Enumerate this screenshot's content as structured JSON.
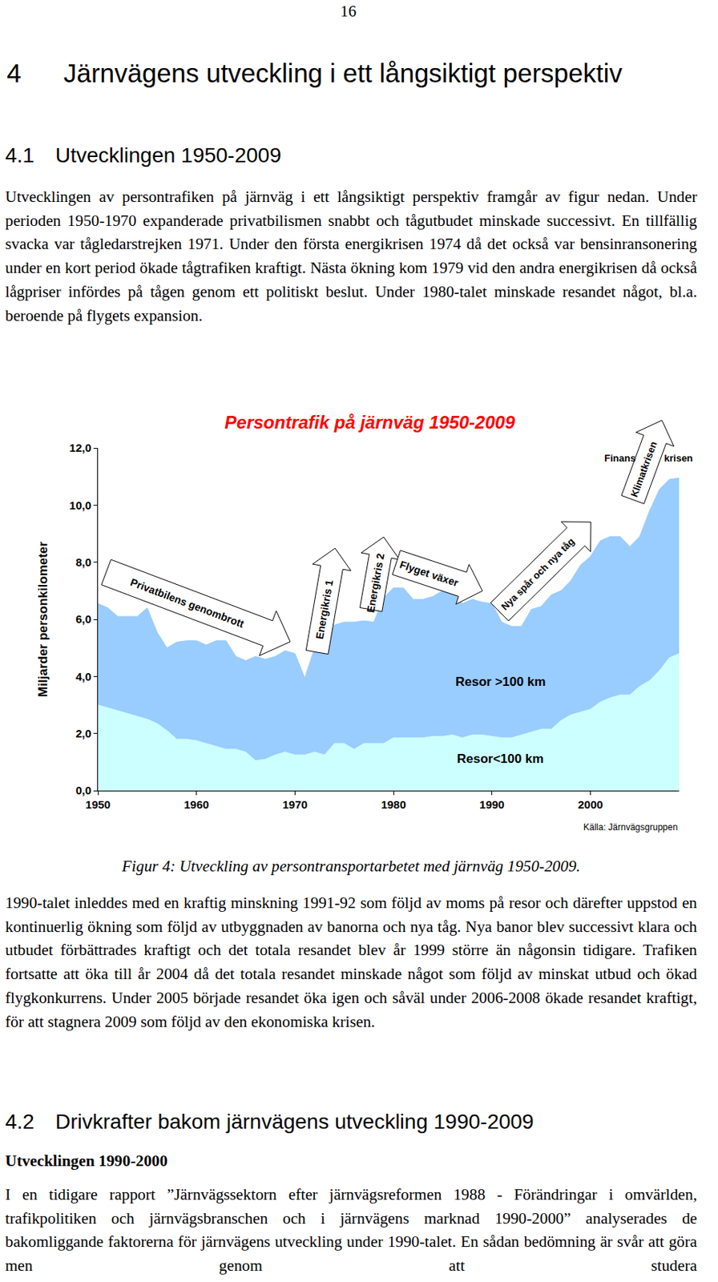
{
  "page_number": "16",
  "heading": {
    "number": "4",
    "text": "Järnvägens utveckling i ett långsiktigt perspektiv"
  },
  "section_1": {
    "number": "4.1",
    "title": "Utvecklingen 1950-2009"
  },
  "paragraph_1": "Utvecklingen av persontrafiken på järnväg i ett långsiktigt perspektiv framgår av figur nedan. Under perioden 1950-1970 expanderade privatbilismen snabbt och tågutbudet minskade successivt. En tillfällig svacka var tågledarstrejken 1971. Under den första energikrisen 1974 då det också var bensinransonering under en kort period ökade tågtrafiken kraftigt. Nästa ökning kom 1979 vid den andra energikrisen då också lågpriser infördes på tågen genom ett politiskt beslut. Under 1980-talet minskade resandet något, bl.a. beroende på flygets expansion.",
  "chart_data": {
    "type": "area",
    "stacked": true,
    "grid": false,
    "title": "Persontrafik på järnväg 1950-2009",
    "y_label": "Miljarder personkilometer",
    "x": [
      1950,
      1951,
      1952,
      1953,
      1954,
      1955,
      1956,
      1957,
      1958,
      1959,
      1960,
      1961,
      1962,
      1963,
      1964,
      1965,
      1966,
      1967,
      1968,
      1969,
      1970,
      1971,
      1972,
      1973,
      1974,
      1975,
      1976,
      1977,
      1978,
      1979,
      1980,
      1981,
      1982,
      1983,
      1984,
      1985,
      1986,
      1987,
      1988,
      1989,
      1990,
      1991,
      1992,
      1993,
      1994,
      1995,
      1996,
      1997,
      1998,
      1999,
      2000,
      2001,
      2002,
      2003,
      2004,
      2005,
      2006,
      2007,
      2008,
      2009
    ],
    "xlim": [
      1950,
      2009
    ],
    "xticks": [
      1950,
      1960,
      1970,
      1980,
      1990,
      2000
    ],
    "ylim": [
      0,
      12
    ],
    "yticks": [
      {
        "value": 0,
        "label": "0,0"
      },
      {
        "value": 2,
        "label": "2,0"
      },
      {
        "value": 4,
        "label": "4,0"
      },
      {
        "value": 6,
        "label": "6,0"
      },
      {
        "value": 8,
        "label": "8,0"
      },
      {
        "value": 10,
        "label": "10,0"
      },
      {
        "value": 12,
        "label": "12,0"
      }
    ],
    "series": [
      {
        "name": "Resor<100 km",
        "color": "#CCFFFF",
        "values": [
          3.0,
          2.9,
          2.8,
          2.7,
          2.6,
          2.5,
          2.35,
          2.1,
          1.8,
          1.8,
          1.75,
          1.65,
          1.55,
          1.45,
          1.45,
          1.35,
          1.05,
          1.1,
          1.25,
          1.35,
          1.25,
          1.25,
          1.35,
          1.25,
          1.65,
          1.65,
          1.45,
          1.65,
          1.65,
          1.65,
          1.85,
          1.85,
          1.85,
          1.85,
          1.9,
          1.9,
          1.95,
          1.85,
          1.95,
          1.95,
          1.9,
          1.85,
          1.85,
          1.95,
          2.05,
          2.15,
          2.15,
          2.45,
          2.65,
          2.75,
          2.85,
          3.1,
          3.25,
          3.35,
          3.35,
          3.65,
          3.85,
          4.2,
          4.65,
          4.8
        ]
      },
      {
        "name": "Resor >100 km",
        "color": "#99CCFF",
        "values": [
          3.55,
          3.5,
          3.3,
          3.4,
          3.5,
          3.9,
          3.2,
          2.9,
          3.4,
          3.45,
          3.5,
          3.45,
          3.7,
          3.8,
          3.25,
          3.2,
          3.65,
          3.5,
          3.45,
          3.55,
          3.55,
          2.7,
          3.65,
          3.8,
          4.15,
          4.25,
          4.45,
          4.3,
          4.25,
          5.1,
          5.25,
          5.25,
          4.85,
          4.85,
          4.9,
          5.1,
          5.05,
          4.7,
          4.75,
          4.65,
          4.65,
          4.05,
          3.9,
          3.8,
          4.3,
          4.3,
          4.7,
          4.55,
          4.7,
          5.15,
          5.35,
          5.65,
          5.65,
          5.55,
          5.2,
          5.25,
          5.95,
          6.35,
          6.25,
          6.15
        ]
      }
    ],
    "annotations": [
      "Privatbilens genombrott",
      "Energikris 1",
      "Energikris 2",
      "Flyget växer",
      "Nya spår och nya tåg",
      "Klimatkrisen",
      "Finans",
      "krisen"
    ],
    "source": "Källa: Järnvägsgruppen"
  },
  "caption": "Figur 4: Utveckling av persontransportarbetet med järnväg 1950-2009.",
  "paragraph_2": "1990-talet inleddes med en kraftig minskning 1991-92 som följd av moms på resor och därefter uppstod en kontinuerlig ökning som följd av utbyggnaden av banorna och nya tåg. Nya banor blev successivt klara och utbudet förbättrades kraftigt och det totala resandet blev år 1999 större än någonsin tidigare. Trafiken fortsatte att öka till år 2004 då det totala resandet minskade något som följd av minskat utbud och ökad flygkonkurrens. Under 2005 började resandet öka igen och såväl under 2006-2008 ökade resandet kraftigt, för att stagnera 2009 som följd av den ekonomiska krisen.",
  "section_2": {
    "number": "4.2",
    "title": "Drivkrafter bakom järnvägens utveckling 1990-2009"
  },
  "subheading": "Utvecklingen 1990-2000",
  "paragraph_3": "I en tidigare rapport ”Järnvägssektorn efter järnvägsreformen 1988 - Förändringar i omvärlden, trafikpolitiken och järnvägsbranschen och i järnvägens marknad 1990-2000” analyserades de bakomliggande faktorerna för järnvägens utveckling under 1990-talet. En sådan bedömning är svår att göra men genom att studera"
}
